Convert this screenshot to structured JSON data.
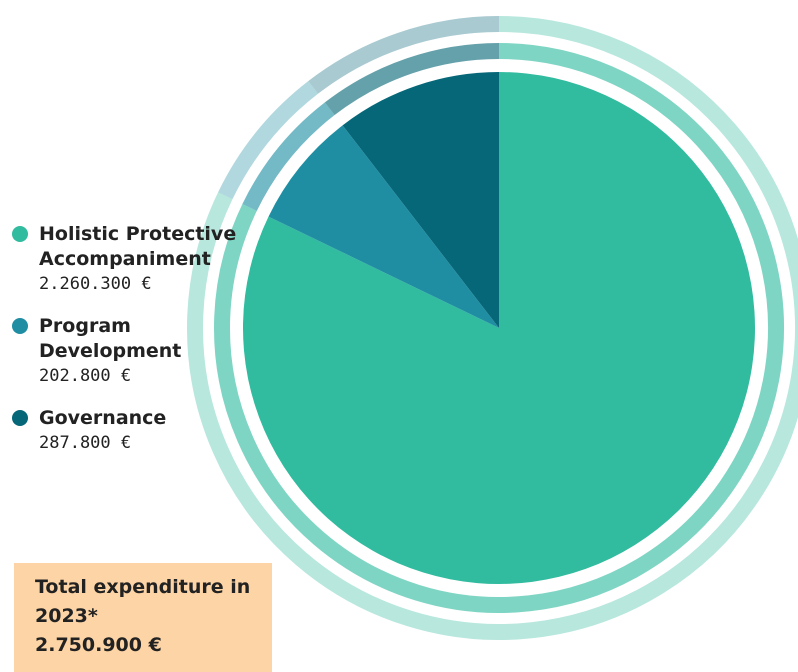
{
  "chart_data": {
    "type": "pie",
    "unit": "€",
    "categories": [
      "Holistic Protective Accompaniment",
      "Program Development",
      "Governance"
    ],
    "values": [
      2260300,
      202800,
      287800
    ],
    "value_labels": [
      "2.260.300 €",
      "202.800 €",
      "287.800 €"
    ],
    "colors": [
      "#31bb9f",
      "#1f8ea3",
      "#066778"
    ],
    "start": "top",
    "direction": "clockwise",
    "legend_position": "left",
    "total": {
      "label": "Total expenditure in 2023*",
      "value": "2.750.900 €",
      "amount": 2750900
    }
  },
  "legend": {
    "items": [
      {
        "label": "Holistic Protective Accompaniment",
        "value": "2.260.300 €",
        "color": "#31bb9f"
      },
      {
        "label": "Program Development",
        "value": "202.800 €",
        "color": "#1f8ea3"
      },
      {
        "label": "Governance",
        "value": "287.800 €",
        "color": "#066778"
      }
    ]
  },
  "summary": {
    "label": "Total expenditure in 2023*",
    "value": "2.750.900 €",
    "background": "#fdd4a5"
  }
}
